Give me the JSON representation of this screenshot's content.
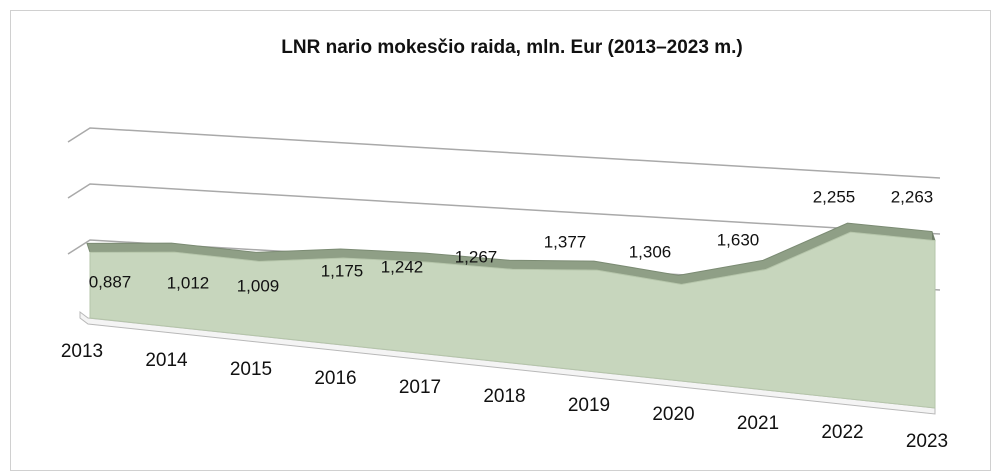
{
  "chart_data": {
    "type": "area3d",
    "title": "LNR nario mokesčio raida, mln. Eur (2013–2023 m.)",
    "categories": [
      "2013",
      "2014",
      "2015",
      "2016",
      "2017",
      "2018",
      "2019",
      "2020",
      "2021",
      "2022",
      "2023"
    ],
    "values": [
      0.887,
      1.012,
      1.009,
      1.175,
      1.242,
      1.267,
      1.377,
      1.306,
      1.63,
      2.255,
      2.263
    ],
    "value_labels": [
      "0,887",
      "1,012",
      "1,009",
      "1,175",
      "1,242",
      "1,267",
      "1,377",
      "1,306",
      "1,630",
      "2,255",
      "2,263"
    ],
    "color": "#c7d6bd",
    "ylim": [
      0,
      3
    ],
    "yticks": [
      1,
      2,
      3
    ],
    "grid": true
  }
}
